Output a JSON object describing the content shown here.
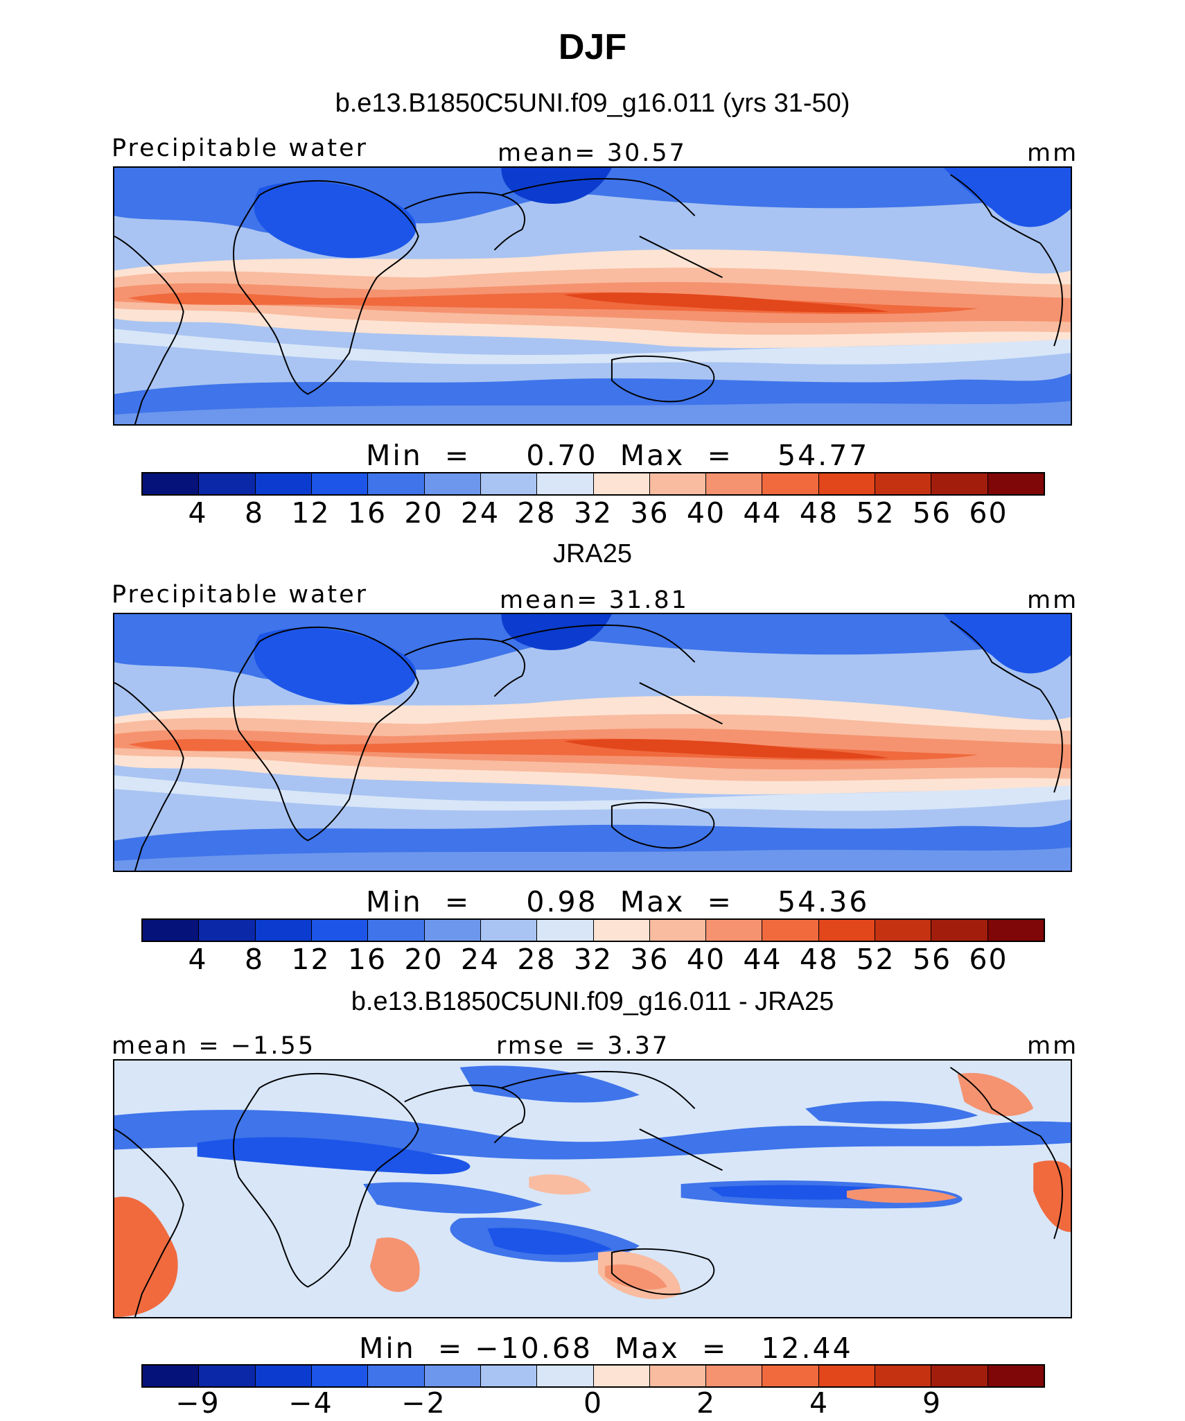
{
  "title": "DJF",
  "palette_colors": [
    "#05127a",
    "#0a28a8",
    "#0b3ccf",
    "#1c55e8",
    "#3f74ea",
    "#6d97ec",
    "#a9c4f2",
    "#d8e6f8",
    "#fde3d3",
    "#f9bca0",
    "#f59370",
    "#f06a3e",
    "#e2461b",
    "#c53212",
    "#a21d0c",
    "#800707"
  ],
  "panels": [
    {
      "subtitle": "b.e13.B1850C5UNI.f09_g16.011 (yrs 31-50)",
      "left_label": "Precipitable water",
      "center_label": "mean=   30.57",
      "right_label": "mm",
      "map_kind": "field",
      "min_max": "Min  =     0.70  Max  =    54.77",
      "colorbar_ticks": [
        "4",
        "8",
        "12",
        "16",
        "20",
        "24",
        "28",
        "32",
        "36",
        "40",
        "44",
        "48",
        "52",
        "56",
        "60"
      ]
    },
    {
      "subtitle": "JRA25",
      "left_label": "Precipitable water",
      "center_label": "mean=   31.81",
      "right_label": "mm",
      "map_kind": "field",
      "min_max": "Min  =     0.98  Max  =    54.36",
      "colorbar_ticks": [
        "4",
        "8",
        "12",
        "16",
        "20",
        "24",
        "28",
        "32",
        "36",
        "40",
        "44",
        "48",
        "52",
        "56",
        "60"
      ]
    },
    {
      "subtitle": "b.e13.B1850C5UNI.f09_g16.011 - JRA25",
      "left_label": "mean  =  −1.55",
      "center_label": "rmse  =    3.37",
      "right_label": "mm",
      "map_kind": "difference",
      "min_max": "Min  = −10.68  Max  =   12.44",
      "colorbar_ticks": [
        "−9",
        "−4",
        "−2",
        "0",
        "2",
        "4",
        "9"
      ]
    }
  ]
}
